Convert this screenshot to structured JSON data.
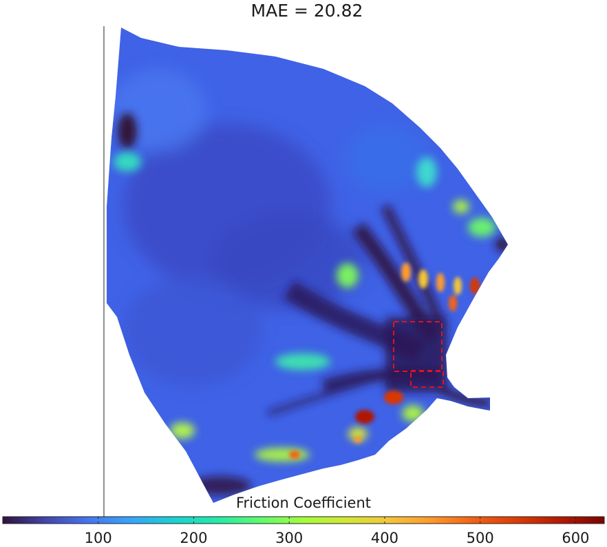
{
  "chart_data": {
    "type": "heatmap",
    "title": "MAE = 20.82",
    "colorbar": {
      "label": "Friction Coefficient",
      "range": [
        0,
        630
      ],
      "ticks": [
        100,
        200,
        300,
        400,
        500,
        600
      ],
      "tick_labels": [
        "100",
        "200",
        "300",
        "400",
        "500",
        "600"
      ],
      "colormap": "turbo",
      "orientation": "horizontal",
      "placement": "bottom"
    },
    "grid": false,
    "highlight_boxes": 2,
    "highlight_color": "#e0141e"
  }
}
